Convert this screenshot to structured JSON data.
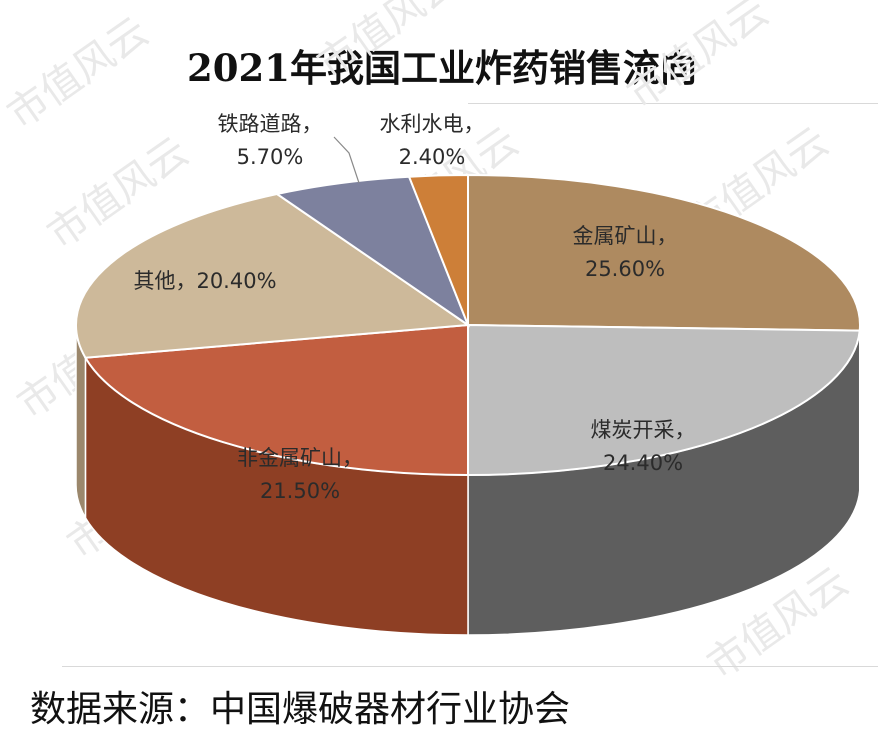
{
  "chart_data": {
    "type": "pie",
    "title": "2021年我国工业炸药销售流向",
    "slices": [
      {
        "label": "金属矿山",
        "value": 25.6,
        "value_text": "25.60%",
        "color": "#ae8a60",
        "side": "#7d5f3c"
      },
      {
        "label": "煤炭开采",
        "value": 24.4,
        "value_text": "24.40%",
        "color": "#bebebe",
        "side": "#5e5e5e"
      },
      {
        "label": "非金属矿山",
        "value": 21.5,
        "value_text": "21.50%",
        "color": "#c25e40",
        "side": "#8e3f24"
      },
      {
        "label": "其他",
        "value": 20.4,
        "value_text": "20.40%",
        "color": "#cdb99a",
        "side": "#9b876c"
      },
      {
        "label": "铁路道路",
        "value": 5.7,
        "value_text": "5.70%",
        "color": "#7d819e",
        "side": "#565a72"
      },
      {
        "label": "水利水电",
        "value": 2.4,
        "value_text": "2.40%",
        "color": "#cd7f38",
        "side": "#905824"
      }
    ]
  },
  "source_text": "数据来源：中国爆破器材行业协会",
  "watermark_text": "市值风云"
}
